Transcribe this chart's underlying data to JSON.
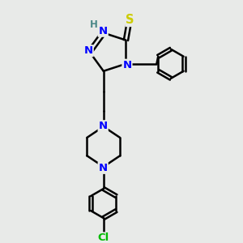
{
  "background_color": "#e8eae8",
  "bond_color": "#000000",
  "N_color": "#0000ff",
  "S_color": "#cccc00",
  "Cl_color": "#00bb00",
  "H_color": "#4a8888",
  "bond_width": 1.8,
  "figsize": [
    3.0,
    3.0
  ],
  "dpi": 100,
  "xlim": [
    0,
    10
  ],
  "ylim": [
    0,
    10
  ]
}
